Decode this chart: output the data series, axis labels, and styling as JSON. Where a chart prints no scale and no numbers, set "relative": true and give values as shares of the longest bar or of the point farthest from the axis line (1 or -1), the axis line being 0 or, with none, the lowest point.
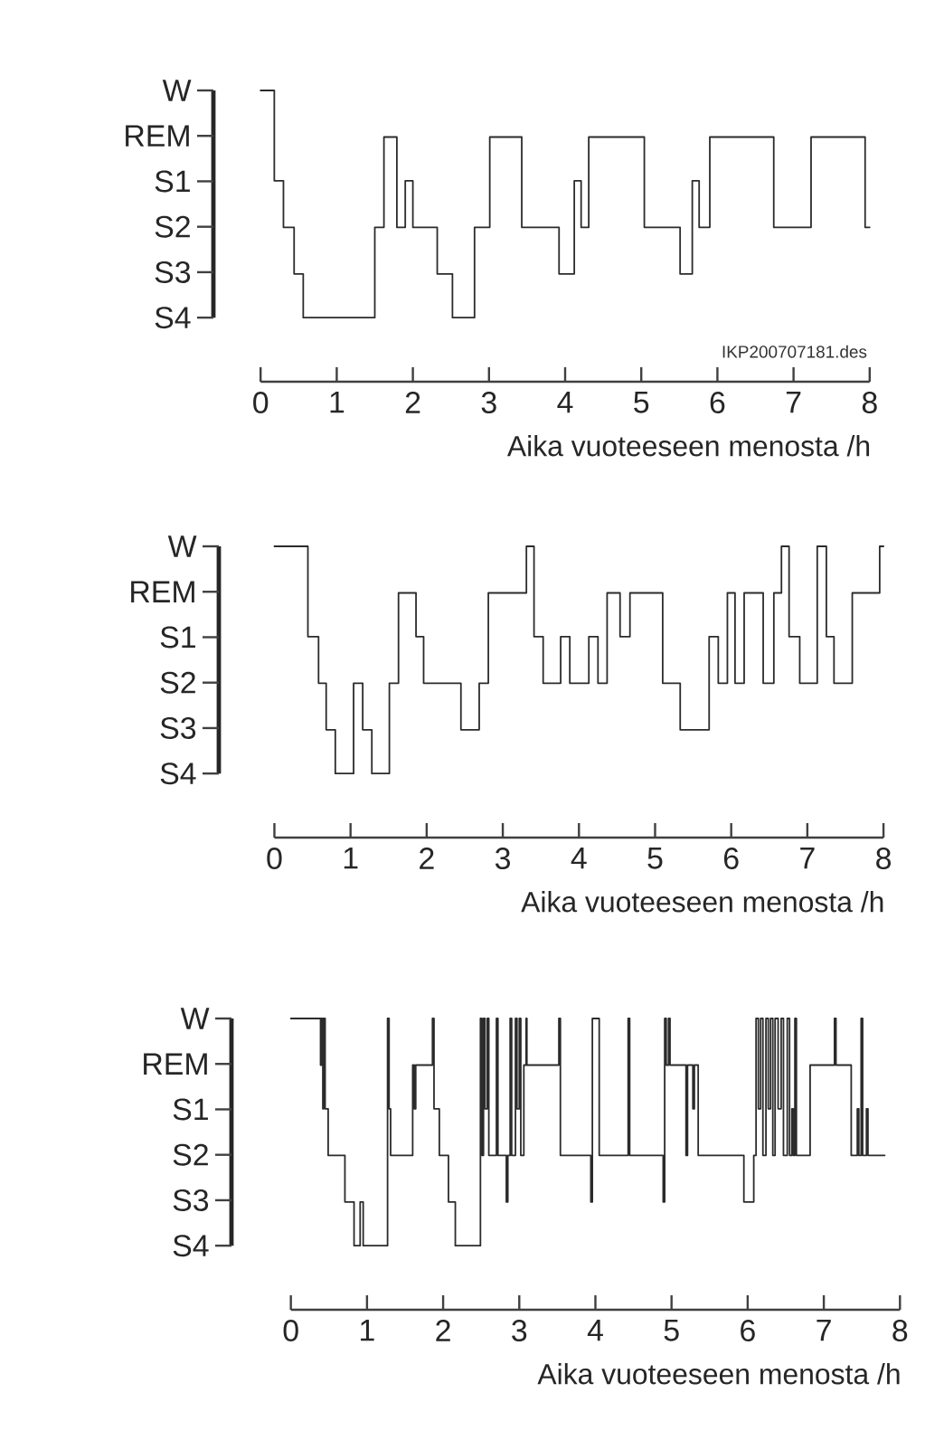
{
  "chart_data": [
    {
      "type": "step",
      "relative": true,
      "xlabel": "Aika vuoteeseen menosta /h",
      "color": "#2b2b2b",
      "xlim": [
        0,
        8
      ],
      "xticks": [
        0,
        1,
        2,
        3,
        4,
        5,
        6,
        7,
        8
      ],
      "annotations": [
        "W",
        "REM",
        "S1",
        "S2",
        "S3",
        "S4",
        "IKP200707181.des"
      ],
      "x": [
        0,
        0.18,
        0.3,
        0.44,
        0.56,
        1.5,
        1.62,
        1.79,
        1.9,
        2.0,
        2.32,
        2.52,
        2.81,
        3.01,
        3.43,
        3.92,
        4.12,
        4.21,
        4.31,
        5.04,
        5.51,
        5.67,
        5.76,
        5.9,
        6.74,
        7.23,
        7.94,
        8.0
      ],
      "values": [
        1,
        0.69,
        0.53,
        0.37,
        0.22,
        0.53,
        0.84,
        0.53,
        0.69,
        0.53,
        0.37,
        0.22,
        0.53,
        0.84,
        0.53,
        0.37,
        0.69,
        0.53,
        0.84,
        0.53,
        0.37,
        0.69,
        0.53,
        0.84,
        0.53,
        0.84,
        0.53,
        0.53
      ]
    },
    {
      "type": "step",
      "relative": true,
      "xlabel": "Aika vuoteeseen menosta /h",
      "color": "#2b2b2b",
      "xlim": [
        0,
        8
      ],
      "xticks": [
        0,
        1,
        2,
        3,
        4,
        5,
        6,
        7,
        8
      ],
      "annotations": [
        "W",
        "REM",
        "S1",
        "S2",
        "S3",
        "S4"
      ],
      "x": [
        0,
        0.44,
        0.58,
        0.68,
        0.8,
        1.04,
        1.16,
        1.28,
        1.51,
        1.63,
        1.86,
        1.96,
        2.45,
        2.69,
        2.81,
        3.31,
        3.41,
        3.53,
        3.76,
        3.88,
        4.13,
        4.25,
        4.37,
        4.54,
        4.67,
        5.1,
        5.33,
        5.71,
        5.83,
        5.95,
        6.05,
        6.17,
        6.42,
        6.56,
        6.66,
        6.76,
        6.9,
        7.13,
        7.25,
        7.35,
        7.59,
        7.95,
        8.0
      ],
      "values": [
        1,
        0.69,
        0.53,
        0.37,
        0.22,
        0.53,
        0.37,
        0.22,
        0.53,
        0.84,
        0.69,
        0.53,
        0.37,
        0.53,
        0.84,
        1,
        0.69,
        0.53,
        0.69,
        0.53,
        0.69,
        0.53,
        0.84,
        0.69,
        0.84,
        0.53,
        0.37,
        0.69,
        0.53,
        0.84,
        0.53,
        0.84,
        0.53,
        0.84,
        1,
        0.69,
        0.53,
        1,
        0.69,
        0.53,
        0.84,
        1,
        1
      ]
    },
    {
      "type": "step",
      "relative": true,
      "xlabel": "Aika vuoteeseen menosta /h",
      "color": "#2b2b2b",
      "xlim": [
        0,
        8
      ],
      "xticks": [
        0,
        1,
        2,
        3,
        4,
        5,
        6,
        7,
        8
      ],
      "annotations": [
        "W",
        "REM",
        "S1",
        "S2",
        "S3",
        "S4"
      ],
      "x": [
        0,
        0.39,
        0.4,
        0.42,
        0.43,
        0.45,
        0.49,
        0.71,
        0.83,
        0.91,
        0.95,
        1.27,
        1.29,
        1.31,
        1.6,
        1.62,
        1.64,
        1.86,
        1.88,
        1.95,
        2.07,
        2.16,
        2.49,
        2.51,
        2.53,
        2.55,
        2.58,
        2.6,
        2.7,
        2.72,
        2.83,
        2.85,
        2.88,
        2.9,
        2.95,
        2.97,
        3.0,
        3.02,
        3.06,
        3.09,
        3.1,
        3.52,
        3.54,
        3.94,
        3.96,
        4.05,
        4.43,
        4.45,
        4.89,
        4.91,
        4.93,
        4.96,
        4.98,
        5.19,
        5.21,
        5.28,
        5.3,
        5.35,
        5.95,
        6.08,
        6.11,
        6.14,
        6.17,
        6.2,
        6.24,
        6.27,
        6.3,
        6.33,
        6.36,
        6.4,
        6.44,
        6.47,
        6.52,
        6.55,
        6.58,
        6.6,
        6.62,
        6.64,
        6.82,
        7.14,
        7.16,
        7.36,
        7.44,
        7.46,
        7.49,
        7.51,
        7.56,
        7.58,
        7.8
      ],
      "values": [
        1,
        0.84,
        1,
        0.69,
        1,
        0.69,
        0.53,
        0.37,
        0.22,
        0.37,
        0.22,
        1,
        0.69,
        0.53,
        0.84,
        0.69,
        0.84,
        1,
        0.69,
        0.53,
        0.37,
        0.22,
        1,
        0.53,
        1,
        0.69,
        1,
        0.53,
        1,
        0.53,
        0.37,
        0.53,
        1,
        0.53,
        1,
        0.69,
        1,
        0.53,
        0.84,
        1,
        0.84,
        1,
        0.53,
        0.37,
        1,
        0.53,
        1,
        0.53,
        0.37,
        1,
        0.84,
        1,
        0.84,
        0.53,
        0.84,
        0.69,
        0.84,
        0.53,
        0.37,
        0.53,
        1,
        0.69,
        1,
        0.53,
        1,
        0.69,
        1,
        0.53,
        1,
        0.69,
        1,
        0.53,
        1,
        0.53,
        0.69,
        0.53,
        1,
        0.53,
        0.84,
        1,
        0.84,
        0.53,
        0.69,
        0.53,
        1,
        0.53,
        0.69,
        0.53,
        0.53
      ]
    }
  ]
}
